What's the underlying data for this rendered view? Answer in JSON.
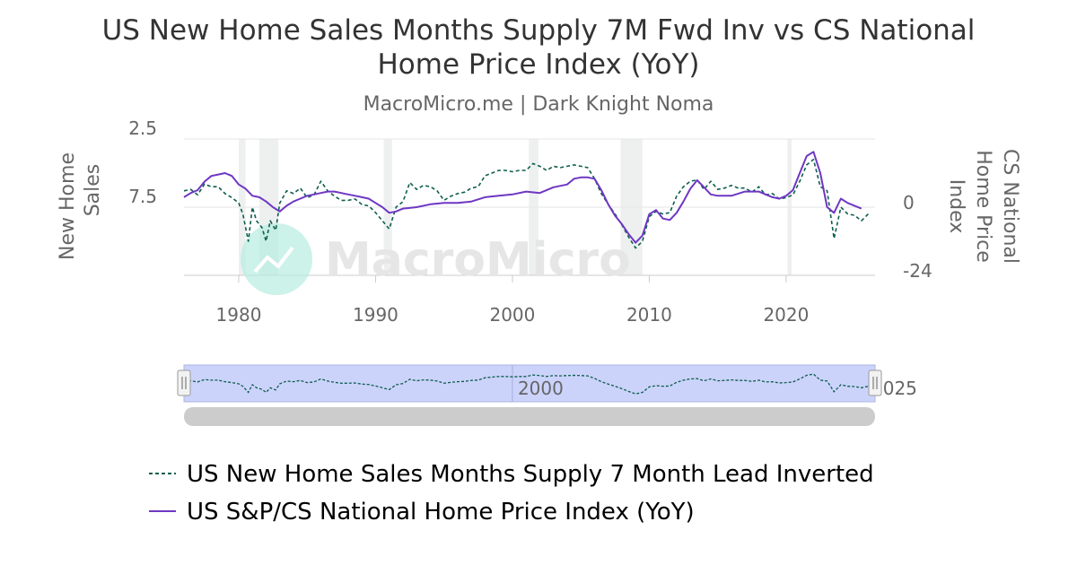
{
  "chart_data": {
    "type": "line",
    "title_line1": "US New Home Sales Months Supply 7M Fwd Inv vs CS National",
    "title_line2": "Home Price Index (YoY)",
    "subtitle": "MacroMicro.me | Dark Knight Noma",
    "watermark": "MacroMicro",
    "x_ticks": [
      "1980",
      "1990",
      "2000",
      "2010",
      "2020"
    ],
    "x_tick_values": [
      1980,
      1990,
      2000,
      2010,
      2020
    ],
    "xlim": [
      1976,
      2026.5
    ],
    "left_axis": {
      "label_line1": "New Home",
      "label_line2": "Sales",
      "reversed": true,
      "ylim": [
        2.5,
        12.5
      ],
      "ticks": [
        "2.5",
        "7.5"
      ],
      "tick_values": [
        2.5,
        7.5
      ]
    },
    "right_axis": {
      "label_line1": "CS National",
      "label_line2": "Home Price",
      "label_line3": "Index",
      "ylim": [
        -24,
        24
      ],
      "ticks": [
        "0",
        "-24"
      ],
      "tick_values": [
        0,
        -24
      ]
    },
    "recessions": [
      [
        1980.0,
        1980.5
      ],
      [
        1981.5,
        1982.9
      ],
      [
        1990.6,
        1991.2
      ],
      [
        2001.2,
        2001.9
      ],
      [
        2007.9,
        2009.5
      ],
      [
        2020.1,
        2020.4
      ]
    ],
    "series": [
      {
        "name": "US New Home Sales Months Supply 7 Month Lead Inverted",
        "axis": "left",
        "color": "#0d5e4d",
        "dash": "4,3",
        "x": [
          1976.0,
          1976.5,
          1977.0,
          1977.5,
          1978.0,
          1978.5,
          1979.0,
          1979.5,
          1980.0,
          1980.3,
          1980.7,
          1981.0,
          1981.3,
          1981.7,
          1982.0,
          1982.3,
          1982.7,
          1983.0,
          1983.5,
          1984.0,
          1984.5,
          1985.0,
          1985.5,
          1986.0,
          1986.5,
          1987.0,
          1987.5,
          1988.0,
          1988.5,
          1989.0,
          1989.5,
          1990.0,
          1990.5,
          1991.0,
          1991.5,
          1992.0,
          1992.5,
          1993.0,
          1993.5,
          1994.0,
          1994.5,
          1995.0,
          1995.5,
          1996.0,
          1996.5,
          1997.0,
          1997.5,
          1998.0,
          1998.5,
          1999.0,
          1999.5,
          2000.0,
          2000.5,
          2001.0,
          2001.5,
          2002.0,
          2002.5,
          2003.0,
          2003.5,
          2004.0,
          2004.5,
          2005.0,
          2005.5,
          2006.0,
          2006.5,
          2007.0,
          2007.5,
          2008.0,
          2008.5,
          2009.0,
          2009.5,
          2010.0,
          2010.5,
          2011.0,
          2011.5,
          2012.0,
          2012.5,
          2013.0,
          2013.5,
          2014.0,
          2014.5,
          2015.0,
          2015.5,
          2016.0,
          2016.5,
          2017.0,
          2017.5,
          2018.0,
          2018.5,
          2019.0,
          2019.5,
          2020.0,
          2020.5,
          2021.0,
          2021.5,
          2022.0,
          2022.5,
          2023.0,
          2023.5,
          2024.0,
          2024.5,
          2025.0,
          2025.5,
          2026.0
        ],
        "values": [
          6.3,
          6.2,
          6.6,
          5.8,
          6.0,
          6.0,
          6.5,
          6.8,
          7.2,
          8.0,
          10.0,
          7.5,
          8.5,
          9.0,
          10.0,
          8.5,
          9.2,
          7.2,
          6.3,
          6.5,
          6.1,
          6.8,
          6.6,
          5.6,
          6.3,
          6.7,
          7.0,
          7.0,
          6.9,
          7.3,
          7.4,
          7.9,
          8.5,
          9.1,
          7.5,
          7.1,
          5.7,
          6.2,
          5.9,
          6.0,
          6.3,
          7.0,
          6.7,
          6.5,
          6.4,
          6.1,
          6.0,
          5.2,
          5.0,
          4.8,
          4.8,
          4.9,
          4.8,
          4.8,
          4.3,
          4.5,
          4.8,
          4.5,
          4.6,
          4.5,
          4.4,
          4.5,
          4.6,
          5.4,
          6.5,
          7.3,
          8.0,
          8.8,
          9.7,
          10.5,
          10.0,
          8.2,
          7.8,
          8.0,
          7.9,
          6.7,
          6.0,
          5.6,
          5.5,
          6.2,
          5.6,
          6.2,
          6.1,
          5.9,
          6.1,
          6.1,
          6.4,
          6.0,
          6.6,
          6.5,
          6.9,
          6.8,
          6.6,
          5.6,
          4.4,
          4.0,
          6.0,
          6.3,
          9.8,
          7.5,
          8.0,
          8.1,
          8.5,
          8.0
        ]
      },
      {
        "name": "US S&P/CS National Home Price Index (YoY)",
        "axis": "right",
        "color": "#6e37c3",
        "dash": "",
        "x": [
          1976.0,
          1976.5,
          1977.0,
          1977.5,
          1978.0,
          1978.5,
          1979.0,
          1979.5,
          1980.0,
          1980.5,
          1981.0,
          1981.5,
          1982.0,
          1982.5,
          1983.0,
          1983.5,
          1984.0,
          1984.5,
          1985.0,
          1985.5,
          1986.0,
          1986.5,
          1987.0,
          1987.5,
          1988.0,
          1988.5,
          1989.0,
          1989.5,
          1990.0,
          1990.5,
          1991.0,
          1991.5,
          1992.0,
          1993.0,
          1994.0,
          1995.0,
          1996.0,
          1997.0,
          1998.0,
          1999.0,
          2000.0,
          2001.0,
          2002.0,
          2003.0,
          2004.0,
          2004.5,
          2005.0,
          2005.5,
          2006.0,
          2006.5,
          2007.0,
          2007.5,
          2008.0,
          2008.5,
          2009.0,
          2009.5,
          2010.0,
          2010.5,
          2011.0,
          2011.5,
          2012.0,
          2012.5,
          2013.0,
          2013.5,
          2014.0,
          2014.5,
          2015.0,
          2016.0,
          2017.0,
          2018.0,
          2019.0,
          2019.5,
          2020.0,
          2020.5,
          2021.0,
          2021.5,
          2022.0,
          2022.5,
          2023.0,
          2023.5,
          2024.0,
          2024.5,
          2025.0,
          2025.5
        ],
        "values": [
          3.5,
          5.0,
          6.0,
          9.0,
          11.0,
          11.5,
          12.0,
          11.0,
          8.0,
          6.5,
          4.0,
          3.5,
          2.0,
          0.0,
          -1.5,
          0.5,
          2.0,
          3.0,
          4.0,
          4.5,
          5.0,
          5.5,
          5.5,
          5.0,
          4.5,
          4.0,
          3.5,
          3.0,
          1.5,
          0.0,
          -2.0,
          -1.5,
          -0.5,
          0.0,
          1.0,
          1.5,
          1.5,
          2.0,
          3.5,
          4.0,
          4.5,
          5.5,
          5.0,
          7.0,
          8.0,
          10.0,
          10.5,
          10.5,
          10.0,
          6.0,
          1.0,
          -3.0,
          -6.0,
          -9.5,
          -12.5,
          -10.0,
          -2.5,
          -1.0,
          -4.0,
          -4.5,
          -2.0,
          2.0,
          6.5,
          9.5,
          7.0,
          4.5,
          4.0,
          4.0,
          5.5,
          5.5,
          3.5,
          3.0,
          4.0,
          6.0,
          12.0,
          18.0,
          19.5,
          12.0,
          0.0,
          -2.0,
          3.0,
          1.5,
          0.5,
          -0.5
        ]
      }
    ],
    "navigator": {
      "tick_label": "2000",
      "tick_value": 2000,
      "tick_label_right": "2025"
    },
    "legend": {
      "placement": "bottom"
    }
  }
}
